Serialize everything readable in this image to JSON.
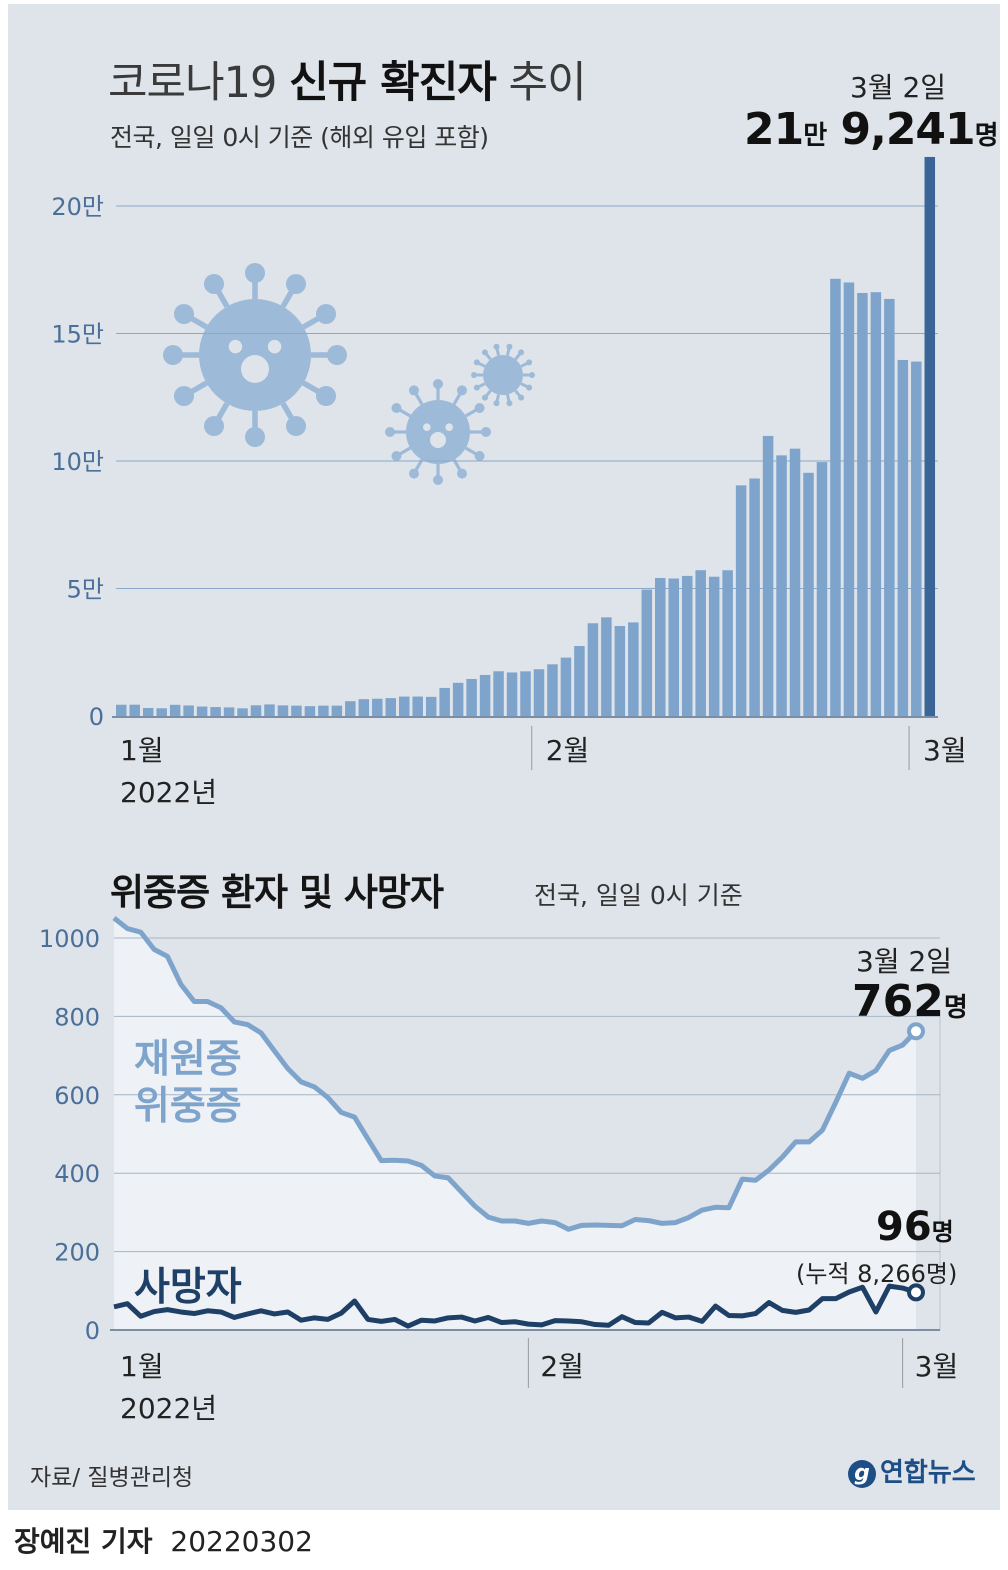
{
  "title": {
    "light": "코로나19",
    "bold": "신규 확진자",
    "light2": "추이"
  },
  "subtitle": "전국, 일일 0시 기준 (해외 유입 포함)",
  "peak": {
    "date": "3월 2일",
    "num1": "21",
    "unit1": "만",
    "num2": "9,241",
    "unit2": "명"
  },
  "title2": "위중증 환자 및 사망자",
  "subtitle2": "전국, 일일 0시 기준",
  "peak2": {
    "date": "3월 2일",
    "severe_num": "762",
    "severe_unit": "명",
    "death_num": "96",
    "death_unit": "명",
    "death_cumulative": "(누적 8,266명)"
  },
  "labels": {
    "severe": "재원중 위중증",
    "death": "사망자"
  },
  "source": "자료/ 질병관리청",
  "logo": "연합뉴스",
  "credit": {
    "name": "장예진 기자",
    "date": "20220302"
  },
  "colors": {
    "bar": "#7ea4cc",
    "bar_last": "#3a6597",
    "severe_line": "#7ea4cc",
    "death_line": "#1e3f66",
    "panel": "#dfe4ea",
    "virus": "#9dbad8"
  },
  "icons": [
    "virus-icon",
    "virus-icon",
    "virus-icon"
  ],
  "chart_data": [
    {
      "type": "bar",
      "title": "코로나19 신규 확진자 추이",
      "subtitle": "전국, 일일 0시 기준 (해외 유입 포함)",
      "yticks": [
        "0",
        "5만",
        "10만",
        "15만",
        "20만"
      ],
      "ylim": [
        0,
        220000
      ],
      "xticks": [
        "1월",
        "2월",
        "3월"
      ],
      "xsub": "2022년",
      "grid": true,
      "values": [
        4415,
        4442,
        3125,
        3022,
        4388,
        4125,
        3714,
        3511,
        3376,
        3005,
        4194,
        4542,
        4166,
        4060,
        3858,
        4069,
        4070,
        5804,
        6603,
        6769,
        7009,
        7626,
        7628,
        7513,
        11000,
        13012,
        14518,
        16096,
        17542,
        17079,
        17514,
        18338,
        20268,
        22907,
        27443,
        36362,
        38691,
        35286,
        36719,
        49567,
        54122,
        53926,
        54941,
        57177,
        54619,
        57164,
        90443,
        93135,
        109831,
        102211,
        104829,
        95362,
        99573,
        171452,
        170018,
        165890,
        166207,
        163566,
        139626,
        138993,
        219241
      ]
    },
    {
      "type": "line",
      "title": "위중증 환자 및 사망자",
      "subtitle": "전국, 일일 0시 기준",
      "yticks": [
        "0",
        "200",
        "400",
        "600",
        "800",
        "1000"
      ],
      "ylim": [
        0,
        1050
      ],
      "xticks": [
        "1월",
        "2월",
        "3월"
      ],
      "xsub": "2022년",
      "series": [
        {
          "name": "재원중 위중증",
          "values": [
            1051,
            1024,
            1015,
            971,
            953,
            882,
            838,
            838,
            822,
            786,
            779,
            758,
            712,
            667,
            633,
            620,
            593,
            555,
            543,
            487,
            432,
            433,
            431,
            420,
            393,
            388,
            352,
            316,
            288,
            278,
            278,
            272,
            278,
            274,
            257,
            267,
            268,
            267,
            266,
            282,
            279,
            272,
            274,
            287,
            306,
            313,
            312,
            385,
            382,
            408,
            441,
            480,
            480,
            510,
            581,
            655,
            642,
            662,
            713,
            727,
            762
          ]
        },
        {
          "name": "사망자",
          "values": [
            59,
            67,
            35,
            47,
            52,
            46,
            42,
            49,
            46,
            32,
            41,
            49,
            41,
            46,
            25,
            31,
            27,
            43,
            74,
            27,
            22,
            27,
            10,
            25,
            23,
            31,
            33,
            23,
            32,
            19,
            21,
            15,
            13,
            24,
            23,
            21,
            14,
            12,
            34,
            19,
            18,
            45,
            31,
            33,
            22,
            61,
            37,
            36,
            42,
            70,
            50,
            45,
            51,
            80,
            80,
            97,
            109,
            46,
            112,
            107,
            96
          ]
        }
      ]
    }
  ]
}
